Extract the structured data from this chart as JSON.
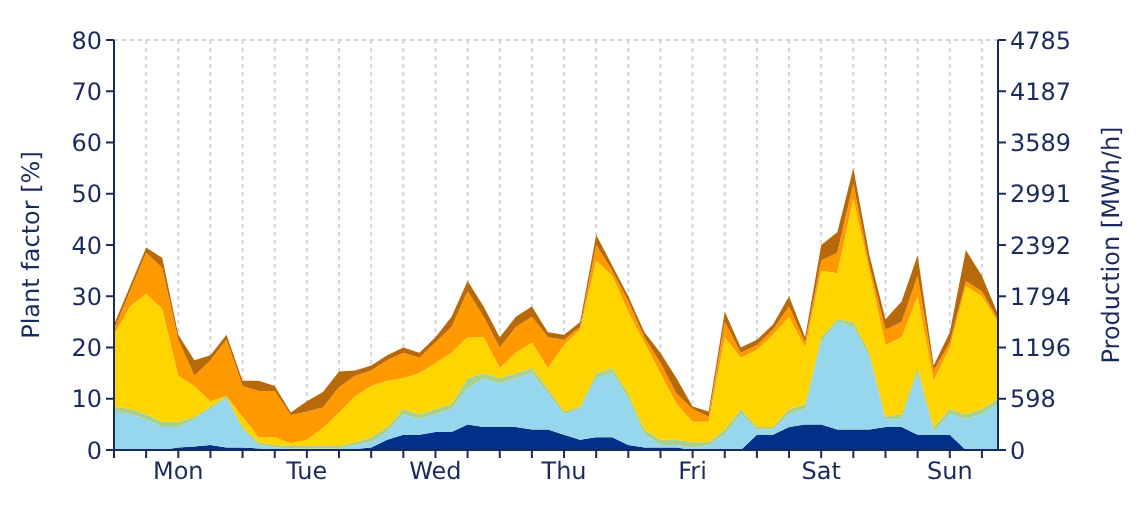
{
  "chart_data": {
    "type": "area",
    "stacked": true,
    "ylabel": "Plant factor [%]",
    "y2label": "Production [MWh/h]",
    "categories": [
      null,
      null,
      null,
      null,
      "Mon",
      null,
      null,
      null,
      null,
      null,
      null,
      null,
      "Tue",
      null,
      null,
      null,
      null,
      null,
      null,
      null,
      "Wed",
      null,
      null,
      null,
      null,
      null,
      null,
      null,
      "Thu",
      null,
      null,
      null,
      null,
      null,
      null,
      null,
      "Fri",
      null,
      null,
      null,
      null,
      null,
      null,
      null,
      "Sat",
      null,
      null,
      null,
      null,
      null,
      null,
      null,
      "Sun",
      null,
      null,
      null
    ],
    "ylim": [
      0,
      80
    ],
    "yticks": [
      0,
      10,
      20,
      30,
      40,
      50,
      60,
      70,
      80
    ],
    "y2lim": [
      0,
      4785
    ],
    "y2ticks": [
      0,
      598,
      1196,
      1794,
      2392,
      2991,
      3589,
      4187,
      4785
    ],
    "grid": true,
    "series": [
      {
        "color": "#003087",
        "values": [
          0,
          0,
          0,
          0,
          0.5,
          0.7,
          1,
          0.5,
          0.5,
          0.3,
          0,
          0,
          0,
          0,
          0,
          0.2,
          0.5,
          2,
          3,
          3,
          3.5,
          3.5,
          5,
          4.5,
          4.5,
          4.5,
          4,
          4,
          3,
          2,
          2.5,
          2.5,
          1,
          0.5,
          0.5,
          0.5,
          0,
          0,
          0,
          0,
          3,
          3,
          4.5,
          5,
          5,
          4,
          4,
          4,
          4.5,
          4.5,
          3,
          3,
          3,
          0,
          0,
          0
        ]
      },
      {
        "color": "#97d7ee",
        "values": [
          7.5,
          7,
          6,
          4.5,
          4,
          5.3,
          7,
          9.5,
          3.5,
          0.7,
          0.5,
          0.3,
          0.3,
          0.3,
          0.3,
          0.8,
          1,
          1.5,
          4,
          3,
          3.5,
          4.5,
          7,
          9.5,
          8.5,
          9.5,
          11,
          7,
          4,
          6,
          11.5,
          12.5,
          9,
          2.5,
          0.5,
          0.5,
          0.5,
          1,
          3,
          7,
          1,
          1,
          2.5,
          3,
          16,
          21,
          20,
          14,
          1.5,
          1.5,
          12,
          0.5,
          4,
          6,
          7,
          9
        ]
      },
      {
        "color": "#a9d08e",
        "values": [
          1,
          1,
          1,
          1,
          1,
          0.5,
          0.5,
          0.5,
          0.5,
          0.5,
          0.5,
          0.5,
          0.5,
          0.5,
          0.5,
          0.5,
          1,
          1,
          1,
          1,
          1,
          1,
          2,
          1,
          1,
          1,
          1,
          1,
          0.5,
          0.5,
          1,
          1,
          1,
          1,
          1,
          1,
          1,
          0.5,
          1,
          1,
          0.5,
          0.5,
          1,
          1,
          1,
          0.5,
          1,
          1,
          0.5,
          1,
          1,
          1,
          1,
          1,
          1,
          1
        ]
      },
      {
        "color": "#ffd500",
        "values": [
          14,
          20,
          23.5,
          22,
          9,
          6,
          1,
          0,
          2,
          1,
          1.5,
          0.5,
          1.2,
          3.5,
          6.5,
          9,
          10,
          9,
          6,
          8,
          9,
          10,
          8,
          7,
          2,
          4,
          5,
          4,
          13,
          15,
          22,
          18,
          16,
          17,
          13,
          7,
          4,
          4,
          18,
          10,
          15,
          18,
          18,
          11,
          13,
          9,
          24,
          16,
          14,
          15,
          14,
          9,
          12,
          25,
          22,
          15
        ]
      },
      {
        "color": "#ff9900",
        "values": [
          1,
          3,
          8,
          8,
          7,
          2,
          8,
          11,
          6,
          9,
          9,
          5.5,
          5.5,
          4,
          5,
          4,
          3,
          4,
          5,
          3,
          4,
          5,
          9,
          4,
          4,
          5,
          5,
          6,
          1,
          0.5,
          3,
          1,
          2,
          1,
          2,
          2,
          2.5,
          1,
          3,
          1,
          1,
          1,
          2,
          1,
          2,
          4,
          3,
          1,
          3,
          3,
          4,
          2,
          1,
          1,
          1,
          0.5
        ]
      },
      {
        "color": "#b8690a",
        "values": [
          1,
          1,
          1,
          2,
          1,
          3,
          1,
          1,
          1,
          2,
          1,
          0.5,
          2,
          3,
          3,
          1,
          1,
          1,
          1,
          1,
          1,
          2,
          2,
          2,
          2,
          2,
          2,
          1,
          1,
          1,
          2,
          1,
          1,
          1,
          2,
          3,
          0.5,
          1,
          2,
          1,
          1,
          1,
          2,
          1,
          3,
          4,
          3,
          2,
          2,
          4,
          4,
          1,
          2,
          6,
          3,
          1
        ]
      }
    ]
  }
}
